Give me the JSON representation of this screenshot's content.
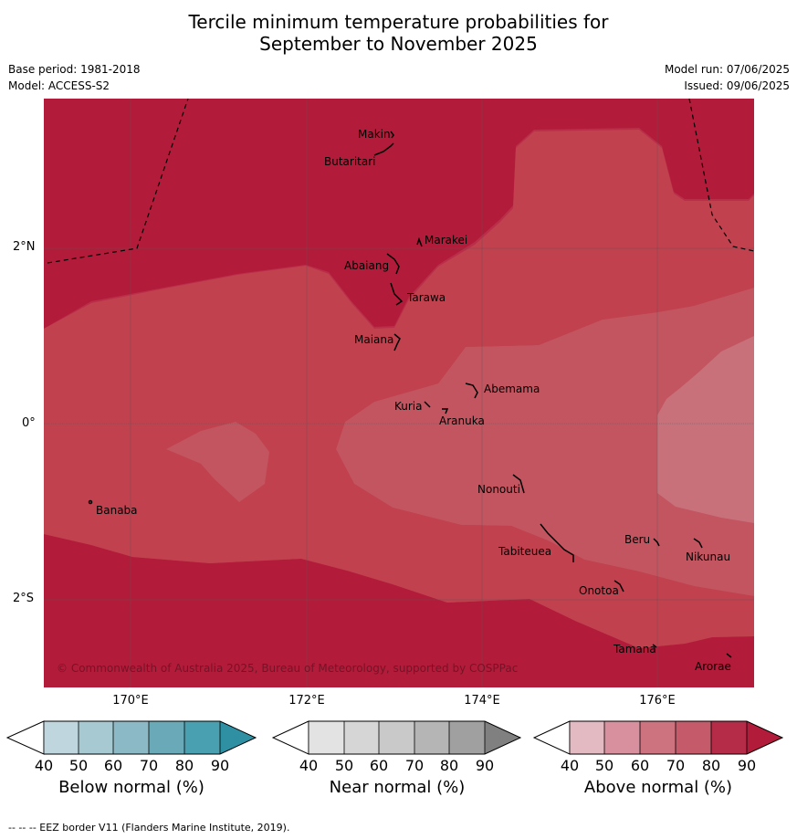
{
  "title_line1": "Tercile minimum temperature probabilities for",
  "title_line2": "September to November 2025",
  "base_period": "Base period: 1981-2018",
  "model": "Model: ACCESS-S2",
  "model_run": "Model run: 07/06/2025",
  "issued": "Issued: 09/06/2025",
  "copyright": "© Commonwealth of Australia 2025, Bureau of Meteorology, supported by COSPPac",
  "lat_labels": [
    "2°N",
    "0°",
    "2°S"
  ],
  "lon_labels": [
    "170°E",
    "172°E",
    "174°E",
    "176°E"
  ],
  "islands": [
    "Makin",
    "Butaritari",
    "Marakei",
    "Abaiang",
    "Tarawa",
    "Maiana",
    "Abemama",
    "Kuria",
    "Aranuka",
    "Nonouti",
    "Beru",
    "Nikunau",
    "Tabiteuea",
    "Onotoa",
    "Tamana",
    "Arorae",
    "Banaba"
  ],
  "colorbars": [
    {
      "label": "Below normal (%)",
      "ticks": [
        "40",
        "50",
        "60",
        "70",
        "80",
        "90"
      ],
      "colors": [
        "#bfd6de",
        "#a6c9d2",
        "#8bb9c5",
        "#6aaab8",
        "#48a0b0",
        "#2f8fa3"
      ]
    },
    {
      "label": "Near normal (%)",
      "ticks": [
        "40",
        "50",
        "60",
        "70",
        "80",
        "90"
      ],
      "colors": [
        "#e3e3e3",
        "#d6d6d6",
        "#c9c9c9",
        "#b5b5b5",
        "#a0a0a0",
        "#808080"
      ]
    },
    {
      "label": "Above normal (%)",
      "ticks": [
        "40",
        "50",
        "60",
        "70",
        "80",
        "90"
      ],
      "colors": [
        "#e3b9c2",
        "#d8909e",
        "#cd727f",
        "#c45a6a",
        "#b42c48",
        "#b21c3a"
      ]
    }
  ],
  "footnote": "--  --  -- EEZ border V11 (Flanders Marine Institute, 2019)."
}
